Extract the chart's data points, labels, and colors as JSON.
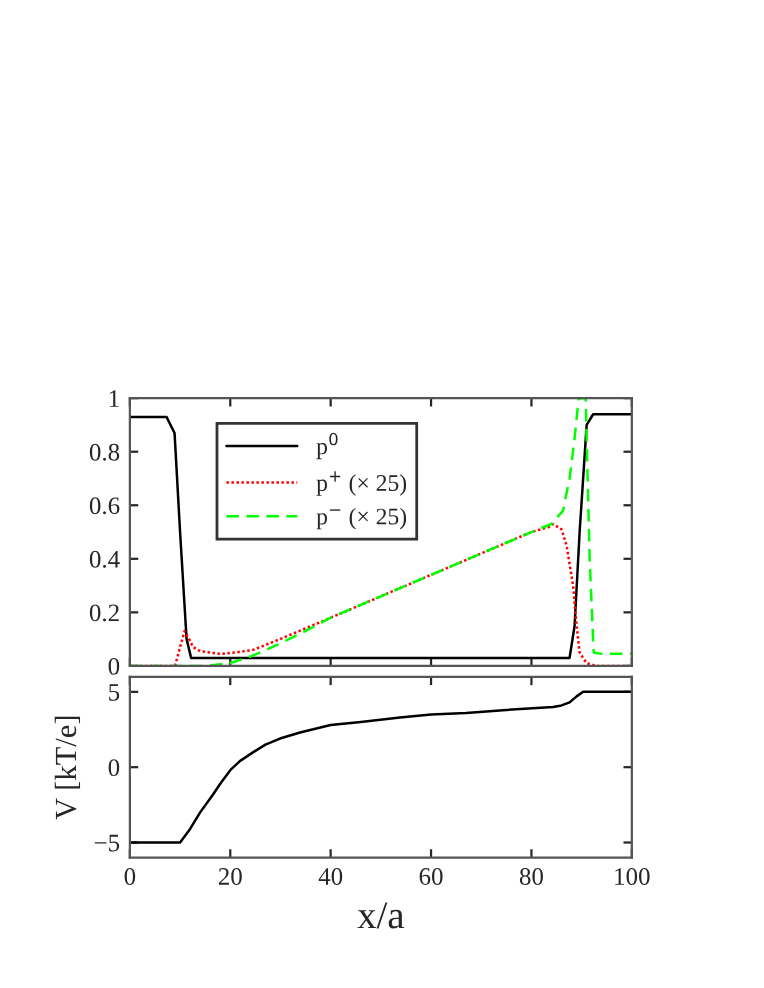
{
  "chart_data": [
    {
      "type": "line",
      "xlim": [
        0,
        100
      ],
      "xticks": [
        0,
        20,
        40,
        60,
        80,
        100
      ],
      "ylim": [
        0,
        1
      ],
      "yticks": [
        0,
        {
          "value": 0.2,
          "label": "0.2"
        },
        {
          "value": 0.4,
          "label": "0.4"
        },
        {
          "value": 0.6,
          "label": "0.6"
        },
        {
          "value": 0.8,
          "label": "0.8"
        },
        1
      ],
      "tick_labels": "y",
      "legend": "top left",
      "grid": false,
      "series": [
        {
          "name": "p$^{0}$",
          "color": "#000000",
          "line_style": "solid",
          "x": [
            0,
            7.3,
            8.9,
            10,
            11.3,
            12.2,
            20,
            40,
            60,
            80,
            87.6,
            88.6,
            89.6,
            91,
            92.3,
            100
          ],
          "values": [
            0.93,
            0.93,
            0.87,
            0.5,
            0.1,
            0.03,
            0.03,
            0.03,
            0.03,
            0.03,
            0.03,
            0.15,
            0.5,
            0.9,
            0.94,
            0.94
          ]
        },
        {
          "name": "p$^{+}$ (× 25)",
          "color": "#ff0000",
          "line_style": "dotted",
          "x": [
            0,
            9,
            10,
            10.9,
            11.8,
            12.6,
            14,
            17.9,
            21,
            24.6,
            29.9,
            40,
            50,
            60,
            70,
            80,
            83.7,
            84.3,
            86,
            87,
            88.3,
            89,
            89.6,
            91,
            93,
            100
          ],
          "values": [
            0,
            0,
            0.07,
            0.13,
            0.1,
            0.07,
            0.055,
            0.045,
            0.05,
            0.06,
            0.1,
            0.18,
            0.26,
            0.34,
            0.42,
            0.5,
            0.52,
            0.53,
            0.51,
            0.45,
            0.3,
            0.15,
            0.05,
            0.01,
            0,
            0
          ]
        },
        {
          "name": "p$^{−}$ (× 25)",
          "color": "#00ff00",
          "line_style": "dashed",
          "x": [
            0,
            15,
            19.9,
            24,
            27.2,
            30,
            33.9,
            40,
            50,
            60,
            70,
            80,
            84,
            86.3,
            87.6,
            88.6,
            89.4,
            90.8,
            91.6,
            92.4,
            94,
            100
          ],
          "values": [
            0,
            0,
            0.01,
            0.035,
            0.06,
            0.085,
            0.12,
            0.18,
            0.26,
            0.34,
            0.42,
            0.5,
            0.53,
            0.58,
            0.7,
            0.85,
            1.0,
            1.0,
            0.4,
            0.05,
            0.045,
            0.045
          ]
        }
      ]
    },
    {
      "type": "line",
      "xlim": [
        0,
        100
      ],
      "xticks": [
        0,
        20,
        40,
        60,
        80,
        100
      ],
      "ylim": [
        -6,
        6
      ],
      "yticks": [
        {
          "value": -5,
          "label": "−5"
        },
        0,
        5
      ],
      "xlabel": "x/a",
      "ylabel": "V [kT/e]",
      "grid": false,
      "series": [
        {
          "color": "#000000",
          "line_style": "solid",
          "x": [
            0,
            10,
            12,
            14,
            16.6,
            18,
            20,
            21.9,
            24.6,
            27,
            29.9,
            33.9,
            40,
            46,
            53.8,
            60,
            67,
            75,
            84.3,
            86,
            87.6,
            89,
            90.3,
            100
          ],
          "values": [
            -5,
            -5,
            -4.1,
            -3,
            -1.8,
            -1.1,
            -0.2,
            0.4,
            1.0,
            1.5,
            1.9,
            2.3,
            2.8,
            3.0,
            3.3,
            3.5,
            3.6,
            3.8,
            4.0,
            4.1,
            4.3,
            4.7,
            5,
            5
          ]
        }
      ]
    }
  ]
}
